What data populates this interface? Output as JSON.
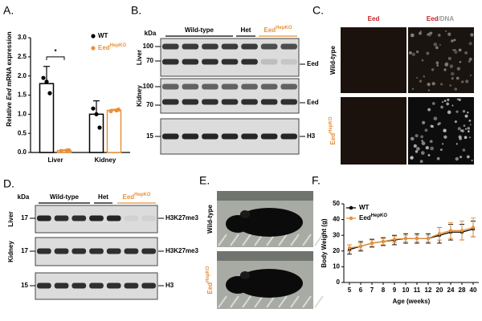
{
  "chart_data": [
    {
      "type": "bar",
      "letter": "A.",
      "y_label": {
        "before": "Relative ",
        "italic": "Eed",
        "after": " mRNA expression"
      },
      "categories": [
        "Liver",
        "Kidney"
      ],
      "series": [
        {
          "name": "WT",
          "color": "#000000",
          "values": [
            1.8,
            1.0
          ],
          "errors": [
            0.45,
            0.35
          ],
          "points": [
            [
              1.95,
              1.55,
              1.85
            ],
            [
              1.15,
              0.65,
              1.0
            ]
          ]
        },
        {
          "name": "Eed",
          "name_sup": "HepKO",
          "color": "#e8913a",
          "values": [
            0.05,
            1.1
          ],
          "errors": [
            0.02,
            0.03
          ],
          "points": [
            [
              0.04,
              0.06,
              0.05
            ],
            [
              1.08,
              1.12,
              1.1
            ]
          ]
        }
      ],
      "ylim": [
        0,
        3.0
      ],
      "yticks": [
        {
          "value": 0,
          "label": "0.0"
        },
        {
          "value": 0.5,
          "label": "0.5"
        },
        {
          "value": 1,
          "label": "1.0"
        },
        {
          "value": 1.5,
          "label": "1.5"
        },
        {
          "value": 2,
          "label": "2.0"
        },
        {
          "value": 2.5,
          "label": "2.5"
        },
        {
          "value": 3,
          "label": "3.0"
        }
      ],
      "significance": "*"
    },
    {
      "type": "line",
      "letter": "F.",
      "x_label": "Age (weeks)",
      "y_label": "Body Weight (g)",
      "categories": [
        "5",
        "6",
        "7",
        "8",
        "9",
        "10",
        "11",
        "12",
        "20",
        "24",
        "28",
        "40"
      ],
      "series": [
        {
          "name": "WT",
          "color": "#000000",
          "values": [
            21,
            23,
            25,
            26,
            27,
            28,
            28,
            28,
            30,
            32,
            32,
            34
          ],
          "errors": [
            3,
            3,
            2.5,
            2.5,
            3,
            3,
            3,
            3,
            5,
            5,
            5,
            5
          ]
        },
        {
          "name": "Eed",
          "name_sup": "HepKO",
          "color": "#e8913a",
          "values": [
            22,
            23,
            25,
            26,
            27.5,
            28,
            28,
            28,
            31,
            33,
            33,
            35
          ],
          "errors": [
            2,
            2,
            2,
            2,
            2,
            2,
            2,
            2,
            4,
            5,
            6,
            6
          ]
        }
      ],
      "ylim": [
        0,
        50
      ],
      "yticks": [
        0,
        10,
        20,
        30,
        40,
        50
      ]
    }
  ],
  "panel_b": {
    "letter": "B.",
    "kda": "kDa",
    "groups": [
      {
        "text": "Wild-type"
      },
      {
        "text": "Het"
      },
      {
        "text": "Eed",
        "sup": "HepKO"
      }
    ],
    "blots": [
      {
        "tissue": "Liver",
        "markers": [
          100,
          70
        ],
        "target": "Eed"
      },
      {
        "tissue": "Kidney",
        "markers": [
          100,
          70
        ],
        "target": "Eed"
      },
      {
        "markers": [
          15
        ],
        "target": "H3"
      }
    ]
  },
  "panel_c": {
    "letter": "C.",
    "columns": [
      {
        "text": "Eed"
      },
      {
        "text": "Eed",
        "suffix": "/DNA"
      }
    ],
    "rows": [
      {
        "text": "Wild-type"
      },
      {
        "text": "Eed",
        "sup": "HepKO"
      }
    ]
  },
  "panel_d": {
    "letter": "D.",
    "kda": "kDa",
    "groups": [
      {
        "text": "Wild-type"
      },
      {
        "text": "Het"
      },
      {
        "text": "Eed",
        "sup": "HepKO"
      }
    ],
    "blots": [
      {
        "tissue": "Liver",
        "markers": [
          17
        ],
        "target": "H3K27me3"
      },
      {
        "tissue": "Kidney",
        "markers": [
          17
        ],
        "target": "H3K27me3"
      },
      {
        "markers": [
          15
        ],
        "target": "H3"
      }
    ]
  },
  "panel_e": {
    "letter": "E.",
    "rows": [
      {
        "text": "Wild-type"
      },
      {
        "text": "Eed",
        "sup": "HepKO"
      }
    ]
  }
}
